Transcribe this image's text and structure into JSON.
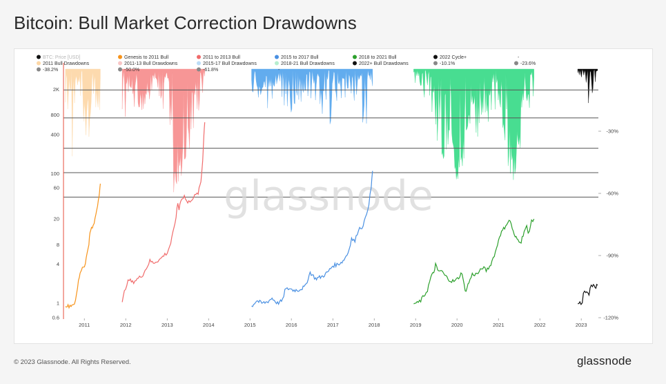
{
  "title": "Bitcoin: Bull Market Correction Drawdowns",
  "footer": {
    "copyright": "© 2023 Glassnode. All Rights Reserved.",
    "logo_text": "glassnode"
  },
  "watermark": "glassnode",
  "colors": {
    "price": "#111111",
    "genesis_2011": "#f7931a",
    "bull_2011_13": "#f06b6b",
    "bull_2015_17": "#4a90e2",
    "bull_2018_21": "#2ca02c",
    "cycle_2022": "#000000",
    "dd_2011": "#fdd7a6",
    "dd_2011_13": "#f79191",
    "dd_2015_17": "#5aa8ee",
    "dd_2018_21": "#3fdc8c",
    "dd_2022": "#000000",
    "level_line": "#555555",
    "left_axis": "#e74c3c"
  },
  "legend": [
    {
      "label": "BTC: Price [USD]",
      "color": "#111111",
      "faded": true
    },
    {
      "label": "Genesis to 2011 Bull",
      "color": "#f7931a"
    },
    {
      "label": "2011 to 2013 Bull",
      "color": "#f06b6b"
    },
    {
      "label": "2015 to 2017 Bull",
      "color": "#4a90e2"
    },
    {
      "label": "2018 to 2021 Bull",
      "color": "#2ca02c"
    },
    {
      "label": "2022 Cycle+",
      "color": "#111111"
    },
    {
      "label": "-",
      "color": null
    },
    {
      "label": "2011 Bull Drawdowns",
      "color": "#fdd7a6"
    },
    {
      "label": "2011-13 Bull Drawdowns",
      "color": "#f9c6c6"
    },
    {
      "label": "2015-17 Bull Drawdowns",
      "color": "#bcdcf7"
    },
    {
      "label": "2018-21 Bull Drawdowns",
      "color": "#b7eecf"
    },
    {
      "label": "2022+ Bull Drawdowns",
      "color": "#111111"
    },
    {
      "label": "-10.1%",
      "color": "#888888"
    },
    {
      "label": "-23.6%",
      "color": "#888888"
    },
    {
      "label": "-38.2%",
      "color": "#888888"
    },
    {
      "label": "-50.0%",
      "color": "#888888"
    },
    {
      "label": "-61.8%",
      "color": "#888888"
    },
    {
      "label": "-",
      "color": null
    }
  ],
  "chart_data": {
    "type": "area",
    "title": "Bitcoin: Bull Market Correction Drawdowns",
    "x_axis": {
      "type": "date",
      "range": [
        "2010-07-01",
        "2023-06-01"
      ],
      "tick_labels": [
        "2011",
        "2012",
        "2013",
        "2014",
        "2015",
        "2016",
        "2017",
        "2018",
        "2019",
        "2020",
        "2021",
        "2022",
        "2023"
      ]
    },
    "y_left": {
      "label": "",
      "scale": "log",
      "range": [
        0.6,
        4200
      ],
      "tick_labels": [
        "0.6",
        "1",
        "4",
        "8",
        "20",
        "60",
        "100",
        "400",
        "800",
        "2K"
      ]
    },
    "y_right": {
      "label": "",
      "unit": "%",
      "range": [
        -120,
        0
      ],
      "tick_labels": [
        "-30%",
        "-60%",
        "-90%",
        "-120%"
      ]
    },
    "reference_levels_pct": [
      -10.1,
      -23.6,
      -38.2,
      -50.0,
      -61.8
    ],
    "price_series": [
      {
        "name": "Genesis to 2011 Bull",
        "color": "#f7931a",
        "points": [
          [
            "2010-07-18",
            0.95
          ],
          [
            "2010-08-10",
            0.9
          ],
          [
            "2010-09-15",
            0.95
          ],
          [
            "2010-10-15",
            1.05
          ],
          [
            "2010-11-10",
            2.2
          ],
          [
            "2010-11-25",
            3.0
          ],
          [
            "2010-12-15",
            3.6
          ],
          [
            "2011-01-10",
            4.0
          ],
          [
            "2011-01-25",
            6.0
          ],
          [
            "2011-02-10",
            8.5
          ],
          [
            "2011-02-20",
            12.0
          ],
          [
            "2011-03-05",
            14.5
          ],
          [
            "2011-03-20",
            15.0
          ],
          [
            "2011-04-05",
            20.0
          ],
          [
            "2011-04-20",
            28.0
          ],
          [
            "2011-05-05",
            40.0
          ],
          [
            "2011-05-15",
            55.0
          ],
          [
            "2011-05-22",
            70.0
          ]
        ]
      },
      {
        "name": "2011 to 2013 Bull",
        "color": "#f06b6b",
        "points": [
          [
            "2011-12-01",
            1.0
          ],
          [
            "2011-12-20",
            1.5
          ],
          [
            "2012-01-10",
            2.0
          ],
          [
            "2012-02-01",
            2.3
          ],
          [
            "2012-03-01",
            2.1
          ],
          [
            "2012-04-01",
            2.3
          ],
          [
            "2012-05-01",
            2.5
          ],
          [
            "2012-06-01",
            2.8
          ],
          [
            "2012-07-01",
            3.5
          ],
          [
            "2012-08-01",
            4.5
          ],
          [
            "2012-09-01",
            4.2
          ],
          [
            "2012-10-01",
            4.5
          ],
          [
            "2012-11-01",
            4.8
          ],
          [
            "2012-12-01",
            5.5
          ],
          [
            "2013-01-01",
            6.0
          ],
          [
            "2013-02-01",
            8.5
          ],
          [
            "2013-03-01",
            14.0
          ],
          [
            "2013-03-20",
            22.0
          ],
          [
            "2013-04-05",
            35.0
          ],
          [
            "2013-04-15",
            28.0
          ],
          [
            "2013-05-01",
            40.0
          ],
          [
            "2013-06-01",
            45.0
          ],
          [
            "2013-07-01",
            35.0
          ],
          [
            "2013-08-01",
            40.0
          ],
          [
            "2013-09-01",
            45.0
          ],
          [
            "2013-10-01",
            50.0
          ],
          [
            "2013-10-25",
            75.0
          ],
          [
            "2013-11-10",
            160.0
          ],
          [
            "2013-11-20",
            400.0
          ],
          [
            "2013-11-28",
            620.0
          ]
        ]
      },
      {
        "name": "2015 to 2017 Bull",
        "color": "#4a90e2",
        "points": [
          [
            "2015-01-15",
            0.9
          ],
          [
            "2015-03-01",
            1.1
          ],
          [
            "2015-04-15",
            1.0
          ],
          [
            "2015-06-01",
            1.05
          ],
          [
            "2015-07-15",
            1.2
          ],
          [
            "2015-09-01",
            1.0
          ],
          [
            "2015-10-15",
            1.1
          ],
          [
            "2015-11-05",
            1.6
          ],
          [
            "2015-12-15",
            1.7
          ],
          [
            "2016-01-15",
            1.6
          ],
          [
            "2016-03-01",
            1.6
          ],
          [
            "2016-05-01",
            1.8
          ],
          [
            "2016-06-15",
            3.0
          ],
          [
            "2016-08-01",
            2.4
          ],
          [
            "2016-10-01",
            2.6
          ],
          [
            "2016-11-15",
            3.0
          ],
          [
            "2017-01-01",
            3.8
          ],
          [
            "2017-02-15",
            4.0
          ],
          [
            "2017-04-01",
            4.5
          ],
          [
            "2017-05-15",
            6.0
          ],
          [
            "2017-06-15",
            10.0
          ],
          [
            "2017-07-15",
            9.0
          ],
          [
            "2017-08-15",
            14.0
          ],
          [
            "2017-09-15",
            15.0
          ],
          [
            "2017-10-15",
            20.0
          ],
          [
            "2017-11-15",
            35.0
          ],
          [
            "2017-12-05",
            60.0
          ],
          [
            "2017-12-17",
            110.0
          ]
        ]
      },
      {
        "name": "2018 to 2021 Bull",
        "color": "#2ca02c",
        "points": [
          [
            "2018-12-15",
            1.0
          ],
          [
            "2019-01-15",
            1.0
          ],
          [
            "2019-02-15",
            1.1
          ],
          [
            "2019-03-15",
            1.3
          ],
          [
            "2019-04-15",
            1.6
          ],
          [
            "2019-05-15",
            2.5
          ],
          [
            "2019-06-10",
            3.0
          ],
          [
            "2019-06-26",
            4.0
          ],
          [
            "2019-07-15",
            3.1
          ],
          [
            "2019-08-15",
            3.2
          ],
          [
            "2019-09-15",
            2.7
          ],
          [
            "2019-10-15",
            2.4
          ],
          [
            "2019-11-15",
            2.2
          ],
          [
            "2019-12-15",
            2.2
          ],
          [
            "2020-01-15",
            2.5
          ],
          [
            "2020-02-15",
            3.0
          ],
          [
            "2020-03-13",
            1.5
          ],
          [
            "2020-04-15",
            2.1
          ],
          [
            "2020-05-15",
            2.8
          ],
          [
            "2020-06-15",
            2.8
          ],
          [
            "2020-07-15",
            3.0
          ],
          [
            "2020-08-15",
            3.6
          ],
          [
            "2020-09-15",
            3.2
          ],
          [
            "2020-10-15",
            3.7
          ],
          [
            "2020-11-15",
            5.0
          ],
          [
            "2020-12-15",
            7.0
          ],
          [
            "2021-01-10",
            11.0
          ],
          [
            "2021-02-15",
            14.0
          ],
          [
            "2021-03-15",
            17.0
          ],
          [
            "2021-04-14",
            19.0
          ],
          [
            "2021-05-20",
            11.0
          ],
          [
            "2021-06-22",
            9.5
          ],
          [
            "2021-07-20",
            9.0
          ],
          [
            "2021-08-15",
            13.0
          ],
          [
            "2021-09-07",
            15.0
          ],
          [
            "2021-09-20",
            12.0
          ],
          [
            "2021-10-20",
            18.0
          ],
          [
            "2021-11-10",
            20.0
          ]
        ]
      },
      {
        "name": "2022 Cycle+",
        "color": "#111111",
        "points": [
          [
            "2022-12-01",
            1.0
          ],
          [
            "2022-12-20",
            1.0
          ],
          [
            "2023-01-10",
            1.05
          ],
          [
            "2023-01-20",
            1.4
          ],
          [
            "2023-02-10",
            1.5
          ],
          [
            "2023-02-25",
            1.4
          ],
          [
            "2023-03-10",
            1.3
          ],
          [
            "2023-03-20",
            1.7
          ],
          [
            "2023-04-10",
            1.9
          ],
          [
            "2023-04-25",
            1.8
          ],
          [
            "2023-05-10",
            1.8
          ],
          [
            "2023-05-25",
            1.9
          ]
        ]
      }
    ],
    "drawdown_series": [
      {
        "name": "2011 Bull Drawdowns",
        "color": "#fdd7a6",
        "range": [
          "2010-07-18",
          "2011-05-22"
        ],
        "max_drawdown_pct": -45,
        "dips": [
          [
            -35,
            -5
          ],
          [
            -25,
            -8
          ],
          [
            -45,
            -10
          ],
          [
            -30,
            -6
          ],
          [
            -20,
            -4
          ],
          [
            -28,
            -7
          ],
          [
            -38,
            -10
          ],
          [
            -42,
            -12
          ],
          [
            -25,
            -5
          ],
          [
            -18,
            -3
          ],
          [
            -30,
            -8
          ],
          [
            -22,
            -6
          ]
        ]
      },
      {
        "name": "2011-13 Bull Drawdowns",
        "color": "#f79191",
        "range": [
          "2011-12-01",
          "2013-11-28"
        ],
        "max_drawdown_pct": -60,
        "dips": [
          [
            -28,
            -6
          ],
          [
            -32,
            -8
          ],
          [
            -26,
            -5
          ],
          [
            -30,
            -10
          ],
          [
            -22,
            -4
          ],
          [
            -18,
            -6
          ],
          [
            -20,
            -5
          ],
          [
            -15,
            -3
          ],
          [
            -25,
            -8
          ],
          [
            -12,
            -3
          ],
          [
            -30,
            -10
          ],
          [
            -60,
            -48
          ],
          [
            -55,
            -40
          ],
          [
            -45,
            -30
          ],
          [
            -42,
            -28
          ],
          [
            -35,
            -20
          ],
          [
            -20,
            -5
          ],
          [
            -12,
            -3
          ]
        ]
      },
      {
        "name": "2015-17 Bull Drawdowns",
        "color": "#5aa8ee",
        "range": [
          "2015-01-15",
          "2017-12-17"
        ],
        "max_drawdown_pct": -32,
        "dips": [
          [
            -20,
            -5
          ],
          [
            -15,
            -6
          ],
          [
            -25,
            -8
          ],
          [
            -18,
            -4
          ],
          [
            -12,
            -3
          ],
          [
            -20,
            -6
          ],
          [
            -30,
            -8
          ],
          [
            -22,
            -5
          ],
          [
            -16,
            -4
          ],
          [
            -14,
            -3
          ],
          [
            -28,
            -6
          ],
          [
            -18,
            -4
          ],
          [
            -24,
            -5
          ],
          [
            -15,
            -3
          ],
          [
            -32,
            -6
          ],
          [
            -20,
            -5
          ],
          [
            -22,
            -4
          ],
          [
            -12,
            -2
          ],
          [
            -18,
            -3
          ],
          [
            -10,
            -2
          ],
          [
            -28,
            -6
          ],
          [
            -15,
            -3
          ]
        ]
      },
      {
        "name": "2018-21 Bull Drawdowns",
        "color": "#3fdc8c",
        "range": [
          "2018-12-15",
          "2021-11-10"
        ],
        "max_drawdown_pct": -62,
        "dips": [
          [
            -10,
            -2
          ],
          [
            -8,
            -2
          ],
          [
            -15,
            -3
          ],
          [
            -25,
            -6
          ],
          [
            -30,
            -10
          ],
          [
            -38,
            -18
          ],
          [
            -45,
            -25
          ],
          [
            -40,
            -28
          ],
          [
            -50,
            -35
          ],
          [
            -62,
            -45
          ],
          [
            -50,
            -30
          ],
          [
            -38,
            -22
          ],
          [
            -30,
            -15
          ],
          [
            -35,
            -18
          ],
          [
            -28,
            -12
          ],
          [
            -25,
            -10
          ],
          [
            -30,
            -10
          ],
          [
            -20,
            -5
          ],
          [
            -25,
            -8
          ],
          [
            -40,
            -22
          ],
          [
            -52,
            -35
          ],
          [
            -55,
            -40
          ],
          [
            -45,
            -30
          ],
          [
            -30,
            -15
          ],
          [
            -20,
            -6
          ],
          [
            -15,
            -4
          ]
        ]
      },
      {
        "name": "2022+ Bull Drawdowns",
        "color": "#000000",
        "range": [
          "2022-12-01",
          "2023-05-25"
        ],
        "max_drawdown_pct": -18,
        "dips": [
          [
            -5,
            -1
          ],
          [
            -8,
            -2
          ],
          [
            -6,
            -1
          ],
          [
            -10,
            -3
          ],
          [
            -18,
            -8
          ],
          [
            -12,
            -4
          ],
          [
            -8,
            -2
          ],
          [
            -6,
            -1
          ]
        ]
      }
    ]
  }
}
